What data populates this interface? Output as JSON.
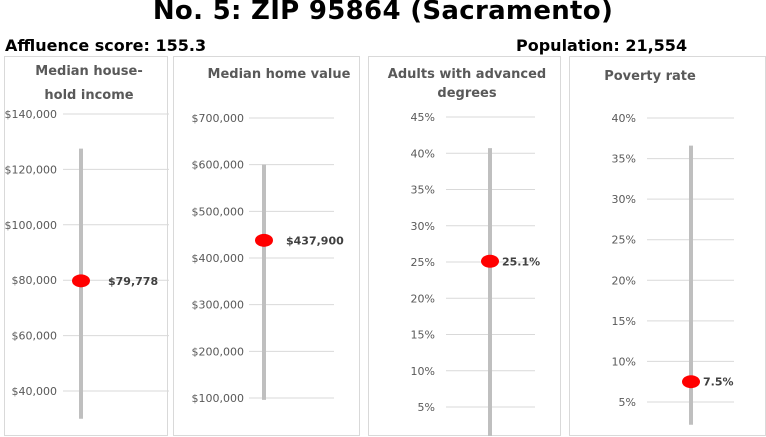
{
  "title": "No. 5: ZIP 95864 (Sacramento)",
  "affluence": "Affluence score: 155.3",
  "population": "Population: 21,554",
  "chart_data": [
    {
      "type": "range-dot",
      "title": [
        "Median house-",
        "hold income"
      ],
      "ticks": [
        40000,
        60000,
        80000,
        100000,
        120000,
        140000
      ],
      "tick_labels": [
        "$40,000",
        "$60,000",
        "$80,000",
        "$100,000",
        "$120,000",
        "$140,000"
      ],
      "range": [
        30000,
        127500
      ],
      "value": 79778,
      "value_label": "$79,778",
      "colors": {
        "bar": "#bfbfbf",
        "dot": "#ff0000"
      }
    },
    {
      "type": "range-dot",
      "title": [
        "Median home value"
      ],
      "ticks": [
        100000,
        200000,
        300000,
        400000,
        500000,
        600000,
        700000
      ],
      "tick_labels": [
        "$100,000",
        "$200,000",
        "$300,000",
        "$400,000",
        "$500,000",
        "$600,000",
        "$700,000"
      ],
      "range": [
        96000,
        600000
      ],
      "value": 437900,
      "value_label": "$437,900",
      "colors": {
        "bar": "#bfbfbf",
        "dot": "#ff0000"
      }
    },
    {
      "type": "range-dot",
      "title": [
        "Adults with advanced",
        "degrees"
      ],
      "ticks": [
        5,
        10,
        15,
        20,
        25,
        30,
        35,
        40,
        45
      ],
      "tick_labels": [
        "5%",
        "10%",
        "15%",
        "20%",
        "25%",
        "30%",
        "35%",
        "40%",
        "45%"
      ],
      "range": [
        1,
        40.7
      ],
      "value": 25.1,
      "value_label": "25.1%",
      "colors": {
        "bar": "#bfbfbf",
        "dot": "#ff0000"
      }
    },
    {
      "type": "range-dot",
      "title": [
        "Poverty rate"
      ],
      "ticks": [
        5,
        10,
        15,
        20,
        25,
        30,
        35,
        40
      ],
      "tick_labels": [
        "5%",
        "10%",
        "15%",
        "20%",
        "25%",
        "30%",
        "35%",
        "40%"
      ],
      "range": [
        2.2,
        36.6
      ],
      "value": 7.5,
      "value_label": "7.5%",
      "colors": {
        "bar": "#bfbfbf",
        "dot": "#ff0000"
      }
    }
  ]
}
